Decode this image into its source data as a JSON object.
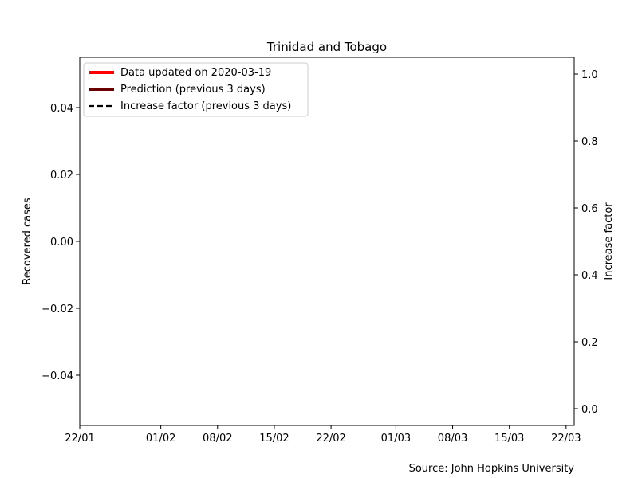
{
  "chart_data": {
    "type": "line",
    "title": "Trinidad and Tobago",
    "ylabel_left": "Recovered cases",
    "ylabel_right": "Increase factor",
    "source": "Source: John Hopkins University",
    "x_ticks": [
      "22/01",
      "01/02",
      "08/02",
      "15/02",
      "22/02",
      "01/03",
      "08/03",
      "15/03",
      "22/03"
    ],
    "x_tick_days": [
      0,
      10,
      17,
      24,
      31,
      39,
      46,
      53,
      60
    ],
    "xlim_days": [
      0,
      61
    ],
    "ylim_left": [
      -0.055,
      0.055
    ],
    "y_ticks_left": [
      "0.04",
      "0.02",
      "0.00",
      "−0.02",
      "−0.04"
    ],
    "y_tick_values_left": [
      0.04,
      0.02,
      0.0,
      -0.02,
      -0.04
    ],
    "ylim_right": [
      -0.05,
      1.05
    ],
    "y_ticks_right": [
      "1.0",
      "0.8",
      "0.6",
      "0.4",
      "0.2",
      "0.0"
    ],
    "y_tick_values_right": [
      1.0,
      0.8,
      0.6,
      0.4,
      0.2,
      0.0
    ],
    "legend_position": "top-left",
    "legend": [
      {
        "label": "Data updated on 2020-03-19",
        "color": "#ff0000",
        "style": "solid"
      },
      {
        "label": "Prediction (previous 3 days)",
        "color": "#6b0000",
        "style": "solid"
      },
      {
        "label": "Increase factor (previous 3 days)",
        "color": "#000000",
        "style": "dashed"
      }
    ],
    "series": []
  }
}
